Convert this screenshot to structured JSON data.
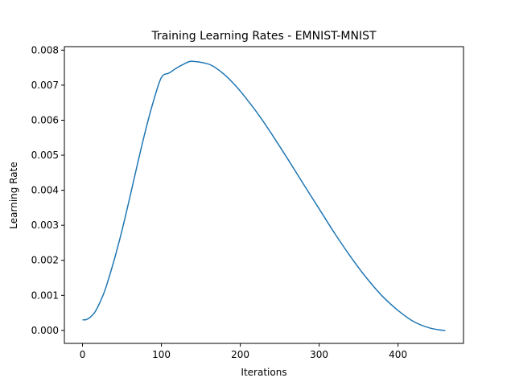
{
  "chart_data": {
    "type": "line",
    "title": "Training Learning Rates - EMNIST-MNIST",
    "xlabel": "Iterations",
    "ylabel": "Learning Rate",
    "xlim": [
      -23,
      483
    ],
    "ylim": [
      -0.00037,
      0.0081
    ],
    "xticks": [
      0,
      100,
      200,
      300,
      400
    ],
    "xtick_labels": [
      "0",
      "100",
      "200",
      "300",
      "400"
    ],
    "yticks": [
      0.0,
      0.001,
      0.002,
      0.003,
      0.004,
      0.005,
      0.006,
      0.007,
      0.008
    ],
    "ytick_labels": [
      "0.000",
      "0.001",
      "0.002",
      "0.003",
      "0.004",
      "0.005",
      "0.006",
      "0.007",
      "0.008"
    ],
    "grid": false,
    "series": [
      {
        "color": "#1f77b4",
        "x": [
          0,
          5,
          10,
          15,
          20,
          25,
          30,
          40,
          50,
          60,
          70,
          80,
          90,
          100,
          110,
          120,
          130,
          137,
          145,
          155,
          165,
          180,
          195,
          210,
          225,
          240,
          260,
          280,
          300,
          320,
          340,
          360,
          380,
          400,
          420,
          440,
          455,
          460
        ],
        "y": [
          0.0003,
          0.00031,
          0.00038,
          0.0005,
          0.0007,
          0.00095,
          0.00125,
          0.002,
          0.00285,
          0.0038,
          0.00478,
          0.00572,
          0.00655,
          0.00722,
          0.00735,
          0.0075,
          0.00762,
          0.00768,
          0.00767,
          0.00763,
          0.00755,
          0.0073,
          0.00696,
          0.00655,
          0.0061,
          0.0056,
          0.0049,
          0.00418,
          0.00347,
          0.00276,
          0.0021,
          0.0015,
          0.00098,
          0.00057,
          0.00025,
          7e-05,
          1e-05,
          0.0
        ]
      }
    ]
  }
}
